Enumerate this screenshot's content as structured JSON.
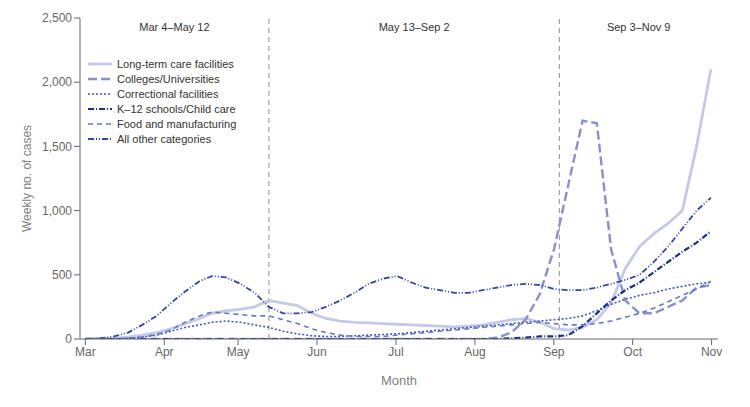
{
  "chart_data": {
    "type": "line",
    "xlabel": "Month",
    "ylabel": "Weekly no. of cases",
    "xlim": [
      -0.3,
      35.5
    ],
    "xticks": [
      {
        "value": 0,
        "label": "Mar"
      },
      {
        "value": 4.43,
        "label": "Apr"
      },
      {
        "value": 8.57,
        "label": "May"
      },
      {
        "value": 13.0,
        "label": "Jun"
      },
      {
        "value": 17.43,
        "label": "Jul"
      },
      {
        "value": 21.86,
        "label": "Aug"
      },
      {
        "value": 26.29,
        "label": "Sep"
      },
      {
        "value": 30.71,
        "label": "Oct"
      },
      {
        "value": 35.14,
        "label": "Nov"
      }
    ],
    "ylim": [
      0,
      2500
    ],
    "yticks": [
      0,
      500,
      {
        "value": 1000,
        "label": "1,000"
      },
      {
        "value": 1500,
        "label": "1,500"
      },
      {
        "value": 2000,
        "label": "2,000"
      },
      {
        "value": 2500,
        "label": "2,500"
      }
    ],
    "grid": false,
    "legend": "upper left",
    "vlines": [
      {
        "x": 10.3,
        "color": "#999999",
        "line_style": "dashed"
      },
      {
        "x": 26.6,
        "color": "#999999",
        "line_style": "dashed"
      }
    ],
    "annotations": [
      "Mar 4–May 12",
      "May 13–Sep 2",
      "Sep 3–Nov 9"
    ],
    "x": [
      0,
      0.8,
      1.6,
      2.4,
      3.2,
      4.0,
      4.8,
      5.6,
      6.4,
      7.1,
      7.9,
      8.7,
      9.5,
      10.3,
      11.1,
      11.9,
      12.7,
      13.5,
      14.3,
      15.1,
      15.9,
      16.7,
      17.5,
      18.3,
      19.1,
      19.9,
      20.7,
      21.5,
      22.3,
      23.1,
      23.9,
      24.7,
      25.5,
      26.3,
      27.1,
      27.9,
      28.7,
      29.5,
      30.3,
      31.1,
      31.9,
      32.7,
      33.5,
      34.3,
      35.1
    ],
    "series": [
      {
        "name": "Long-term care facilities",
        "color": "#c5c9e8",
        "line_style": "solid",
        "values": [
          0,
          2,
          5,
          15,
          30,
          50,
          80,
          120,
          160,
          200,
          220,
          230,
          250,
          300,
          280,
          260,
          200,
          160,
          140,
          130,
          125,
          120,
          115,
          110,
          105,
          100,
          95,
          100,
          110,
          130,
          150,
          160,
          130,
          80,
          70,
          90,
          150,
          280,
          550,
          720,
          820,
          900,
          1000,
          1500,
          2100
        ]
      },
      {
        "name": "Colleges/Universities",
        "color": "#8890cc",
        "line_style": "large_dash",
        "values": [
          0,
          0,
          0,
          0,
          0,
          0,
          0,
          0,
          0,
          0,
          0,
          0,
          0,
          0,
          0,
          0,
          0,
          0,
          0,
          0,
          0,
          0,
          0,
          0,
          0,
          0,
          0,
          0,
          0,
          10,
          50,
          150,
          350,
          700,
          1200,
          1700,
          1680,
          700,
          300,
          200,
          200,
          250,
          300,
          400,
          420
        ]
      },
      {
        "name": "Correctional facilities",
        "color": "#4455bb",
        "line_style": "dotted",
        "values": [
          0,
          0,
          0,
          5,
          15,
          30,
          60,
          90,
          110,
          130,
          140,
          130,
          110,
          90,
          60,
          40,
          25,
          20,
          20,
          25,
          30,
          35,
          40,
          50,
          60,
          70,
          80,
          90,
          100,
          110,
          120,
          130,
          140,
          150,
          160,
          180,
          220,
          270,
          310,
          340,
          360,
          390,
          410,
          430,
          440
        ]
      },
      {
        "name": "K–12 schools/Child care",
        "color": "#1a2e8a",
        "line_style": "dashdot_heavy",
        "values": [
          0,
          0,
          0,
          0,
          0,
          0,
          0,
          0,
          0,
          0,
          0,
          0,
          0,
          0,
          0,
          0,
          0,
          0,
          0,
          0,
          0,
          0,
          0,
          0,
          0,
          0,
          0,
          0,
          0,
          0,
          5,
          10,
          20,
          20,
          30,
          100,
          200,
          300,
          380,
          440,
          520,
          600,
          680,
          750,
          840
        ]
      },
      {
        "name": "Food and manufacturing",
        "color": "#6677cc",
        "line_style": "medium_dash",
        "values": [
          0,
          0,
          0,
          5,
          15,
          35,
          70,
          130,
          180,
          210,
          200,
          190,
          180,
          180,
          150,
          120,
          80,
          50,
          30,
          20,
          20,
          20,
          30,
          40,
          50,
          60,
          70,
          80,
          90,
          100,
          110,
          120,
          130,
          120,
          110,
          110,
          120,
          140,
          170,
          200,
          240,
          290,
          340,
          390,
          450
        ]
      },
      {
        "name": "All other categories",
        "color": "#3344aa",
        "line_style": "dash_dotdot",
        "values": [
          0,
          5,
          20,
          50,
          110,
          180,
          280,
          370,
          450,
          490,
          480,
          430,
          360,
          250,
          200,
          200,
          210,
          250,
          300,
          360,
          430,
          470,
          490,
          440,
          400,
          380,
          360,
          360,
          380,
          400,
          420,
          430,
          420,
          390,
          380,
          380,
          400,
          430,
          460,
          500,
          600,
          720,
          860,
          1000,
          1100
        ]
      }
    ]
  }
}
